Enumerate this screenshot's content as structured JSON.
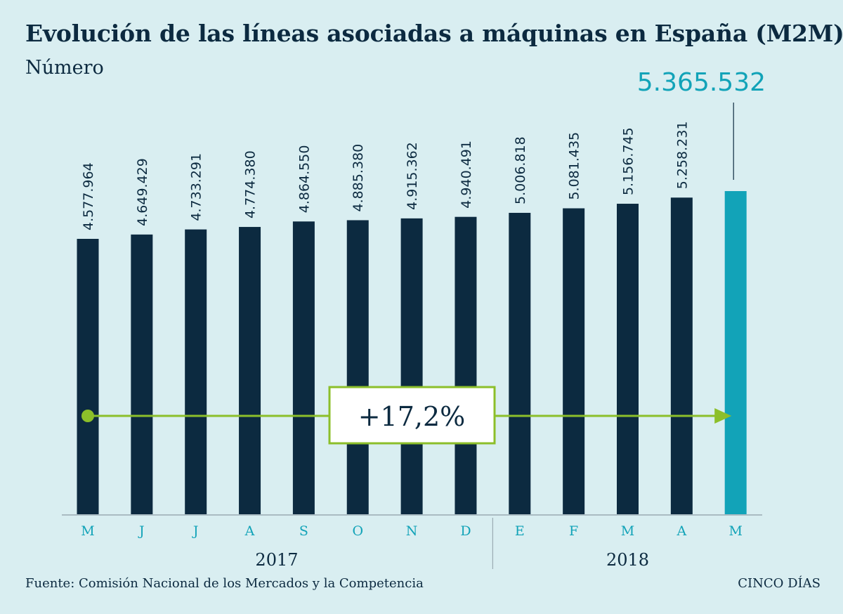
{
  "header": {
    "title": "Evolución de las líneas asociadas a máquinas en España (M2M)",
    "subtitle": "Número"
  },
  "footer": {
    "source": "Fuente: Comisión Nacional de los Mercados y la Competencia",
    "brand": "CINCO DÍAS"
  },
  "colors": {
    "background": "#d9eef1",
    "bar": "#0c2a40",
    "bar_highlight": "#12a3b8",
    "growth_arrow": "#8cbf2a",
    "axis_label": "#12a3b8",
    "text": "#0c2a40"
  },
  "chart_data": {
    "type": "bar",
    "title": "Evolución de las líneas asociadas a máquinas en España (M2M)",
    "subtitle": "Número",
    "categories": [
      "M",
      "J",
      "J",
      "A",
      "S",
      "O",
      "N",
      "D",
      "E",
      "F",
      "M",
      "A",
      "M"
    ],
    "values": [
      4577964,
      4649429,
      4733291,
      4774380,
      4864550,
      4885380,
      4915362,
      4940491,
      5006818,
      5081435,
      5156745,
      5258231,
      5365532
    ],
    "labels": [
      "4.577.964",
      "4.649.429",
      "4.733.291",
      "4.774.380",
      "4.864.550",
      "4.885.380",
      "4.915.362",
      "4.940.491",
      "5.006.818",
      "5.081.435",
      "5.156.745",
      "5.258.231",
      "5.365.532"
    ],
    "highlight_index": 12,
    "year_groups": [
      {
        "label": "2017",
        "count": 8
      },
      {
        "label": "2018",
        "count": 5
      }
    ],
    "annotation": "+17,2%",
    "ylim": [
      0,
      5400000
    ],
    "grid": false,
    "legend": "none",
    "xlabel": "",
    "ylabel": ""
  }
}
